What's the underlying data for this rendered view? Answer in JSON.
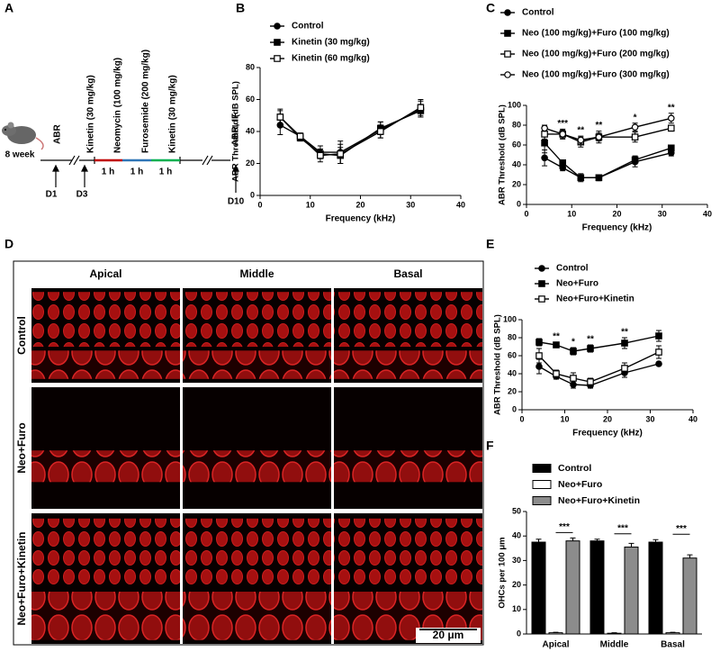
{
  "timeline": {
    "panel_label": "A",
    "age": "8 week",
    "labels": [
      "ABR",
      "Kinetin (30 mg/kg)",
      "Neomycin (100 mg/kg)",
      "Furosemide (200 mg/kg)",
      "Kinetin (30 mg/kg)",
      "ABR, IF"
    ],
    "durations": [
      "1 h",
      "1 h",
      "1 h"
    ],
    "days": [
      "D1",
      "D3",
      "D10"
    ]
  },
  "micrographs": {
    "panel_label": "D",
    "columns": [
      "Apical",
      "Middle",
      "Basal"
    ],
    "rows": [
      "Control",
      "Neo+Furo",
      "Neo+Furo+Kinetin"
    ],
    "scale_bar": "20 μm"
  },
  "chart_data": [
    {
      "type": "line",
      "panel_label": "B",
      "xlabel": "Frequency (kHz)",
      "ylabel": "ABR Threshold  (dB SPL)",
      "x": [
        4,
        8,
        12,
        16,
        24,
        32
      ],
      "xlim": [
        0,
        40
      ],
      "xticks": [
        0,
        10,
        20,
        30,
        40
      ],
      "ylim": [
        0,
        80
      ],
      "yticks": [
        0,
        20,
        40,
        60,
        80
      ],
      "series": [
        {
          "name": "Control",
          "color": "#000000",
          "marker": "circle-filled",
          "values": [
            44,
            37,
            27,
            27,
            41,
            54
          ],
          "errors": [
            6,
            2,
            4,
            7,
            5,
            5
          ]
        },
        {
          "name": "Kinetin (30 mg/kg)",
          "color": "#000000",
          "marker": "square-filled",
          "values": [
            49,
            36,
            26,
            25,
            42,
            53
          ],
          "errors": [
            4,
            2,
            3,
            5,
            4,
            4
          ]
        },
        {
          "name": "Kinetin (60 mg/kg)",
          "color": "#000000",
          "marker": "square-open",
          "values": [
            49,
            37,
            25,
            26,
            40,
            55
          ],
          "errors": [
            5,
            2,
            4,
            6,
            4,
            5
          ]
        }
      ]
    },
    {
      "type": "line",
      "panel_label": "C",
      "xlabel": "Frequency (kHz)",
      "ylabel": "ABR Threshold  (dB SPL)",
      "x": [
        4,
        8,
        12,
        16,
        24,
        32
      ],
      "xlim": [
        0,
        40
      ],
      "xticks": [
        0,
        10,
        20,
        30,
        40
      ],
      "ylim": [
        0,
        100
      ],
      "yticks": [
        0,
        20,
        40,
        60,
        80,
        100
      ],
      "series": [
        {
          "name": "Control",
          "color": "#000000",
          "marker": "circle-filled",
          "values": [
            47,
            37,
            27,
            27,
            43,
            52
          ],
          "errors": [
            8,
            3,
            3,
            3,
            5,
            3
          ]
        },
        {
          "name": "Neo (100 mg/kg)+Furo (100 mg/kg)",
          "color": "#000000",
          "marker": "square-filled",
          "values": [
            62,
            42,
            27,
            27,
            45,
            57
          ],
          "errors": [
            10,
            3,
            4,
            3,
            4,
            3
          ]
        },
        {
          "name": "Neo (100 mg/kg)+Furo (200 mg/kg)",
          "color": "#000000",
          "marker": "square-open",
          "values": [
            71,
            71,
            63,
            68,
            68,
            77
          ],
          "errors": [
            5,
            5,
            5,
            6,
            5,
            3
          ]
        },
        {
          "name": "Neo (100 mg/kg)+Furo (300 mg/kg)",
          "color": "#000000",
          "marker": "circle-open",
          "values": [
            77,
            71,
            65,
            68,
            78,
            87
          ],
          "errors": [
            3,
            4,
            4,
            4,
            4,
            5
          ]
        }
      ],
      "annotations": [
        {
          "x": 8,
          "text": "***"
        },
        {
          "x": 12,
          "text": "**"
        },
        {
          "x": 16,
          "text": "**"
        },
        {
          "x": 24,
          "text": "*"
        },
        {
          "x": 32,
          "text": "**"
        }
      ]
    },
    {
      "type": "line",
      "panel_label": "E",
      "xlabel": "Frequency (kHz)",
      "ylabel": "ABR Threshold  (dB SPL)",
      "x": [
        4,
        8,
        12,
        16,
        24,
        32
      ],
      "xlim": [
        0,
        40
      ],
      "xticks": [
        0,
        10,
        20,
        30,
        40
      ],
      "ylim": [
        0,
        100
      ],
      "yticks": [
        0,
        20,
        40,
        60,
        80,
        100
      ],
      "series": [
        {
          "name": "Control",
          "color": "#000000",
          "marker": "circle-filled",
          "values": [
            48,
            37,
            28,
            27,
            41,
            51
          ],
          "errors": [
            8,
            3,
            4,
            3,
            5,
            2
          ]
        },
        {
          "name": "Neo+Furo",
          "color": "#000000",
          "marker": "square-filled",
          "values": [
            75,
            72,
            65,
            68,
            74,
            82
          ],
          "errors": [
            4,
            3,
            4,
            4,
            6,
            6
          ]
        },
        {
          "name": "Neo+Furo+Kinetin",
          "color": "#000000",
          "marker": "square-open",
          "values": [
            60,
            40,
            35,
            31,
            46,
            64
          ],
          "errors": [
            8,
            4,
            6,
            4,
            6,
            7
          ]
        }
      ],
      "annotations": [
        {
          "x": 8,
          "text": "**"
        },
        {
          "x": 12,
          "text": "*"
        },
        {
          "x": 16,
          "text": "**"
        },
        {
          "x": 24,
          "text": "**"
        }
      ]
    },
    {
      "type": "bar",
      "panel_label": "F",
      "ylabel": "OHCs per 100 μm",
      "categories": [
        "Apical",
        "Middle",
        "Basal"
      ],
      "ylim": [
        0,
        50
      ],
      "yticks": [
        0,
        10,
        20,
        30,
        40,
        50
      ],
      "series": [
        {
          "name": "Control",
          "color": "#000000",
          "values": [
            37.5,
            38,
            37.5
          ],
          "errors": [
            1.2,
            0.7,
            1
          ]
        },
        {
          "name": "Neo+Furo",
          "color": "#ffffff",
          "values": [
            0.5,
            0.3,
            0.5
          ],
          "errors": [
            0.2,
            0.2,
            0.2
          ]
        },
        {
          "name": "Neo+Furo+Kinetin",
          "color": "#8c8c8c",
          "values": [
            38,
            35.5,
            31
          ],
          "errors": [
            1.2,
            1.5,
            1.3
          ]
        }
      ],
      "annotations": [
        "***",
        "***",
        "***"
      ]
    }
  ]
}
